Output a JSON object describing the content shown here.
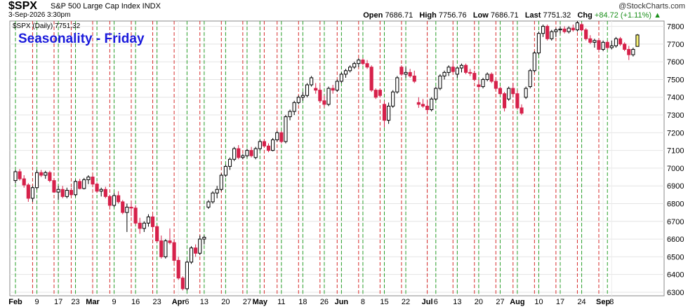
{
  "header": {
    "symbol": "$SPX",
    "name": "S&P 500 Large Cap Index INDX",
    "date": "3-Sep-2026 3:30pm",
    "brand": "@StockCharts.com",
    "ohlc": {
      "open_label": "Open",
      "open": "7686.71",
      "high_label": "High",
      "high": "7756.76",
      "low_label": "Low",
      "low": "7686.71",
      "last_label": "Last",
      "last": "7751.32",
      "chg_label": "Chg",
      "chg": "+84.72 (+1.11%)"
    }
  },
  "colors": {
    "up_border": "#000000",
    "down": "#d6214a",
    "flat": "#000000",
    "friday_line": "#d62b2b",
    "monday_line": "#2aa02a",
    "highlight": "#f5f073",
    "title": "#1a1adb"
  },
  "chart_data": {
    "type": "candlestick",
    "title": "Seasonality - Friday",
    "legend": "$SPX (Daily) 7751.32",
    "legend_placement": "top-left",
    "ylim": [
      6280,
      7830
    ],
    "y_ticks": [
      6300,
      6400,
      6500,
      6600,
      6700,
      6800,
      6900,
      7000,
      7100,
      7200,
      7300,
      7400,
      7500,
      7600,
      7700,
      7800
    ],
    "grid": true,
    "x_ticks": [
      {
        "i": 0,
        "label": "Feb",
        "bold": true
      },
      {
        "i": 5,
        "label": "9"
      },
      {
        "i": 10,
        "label": "17"
      },
      {
        "i": 14,
        "label": "23"
      },
      {
        "i": 18,
        "label": "Mar",
        "bold": true
      },
      {
        "i": 23,
        "label": "9"
      },
      {
        "i": 28,
        "label": "16"
      },
      {
        "i": 33,
        "label": "23"
      },
      {
        "i": 38,
        "label": "Apr",
        "bold": true
      },
      {
        "i": 40,
        "label": "6"
      },
      {
        "i": 44,
        "label": "13"
      },
      {
        "i": 49,
        "label": "20"
      },
      {
        "i": 54,
        "label": "27"
      },
      {
        "i": 57,
        "label": "May",
        "bold": true
      },
      {
        "i": 62,
        "label": "11"
      },
      {
        "i": 67,
        "label": "18"
      },
      {
        "i": 72,
        "label": "26"
      },
      {
        "i": 76,
        "label": "Jun",
        "bold": true
      },
      {
        "i": 81,
        "label": "8"
      },
      {
        "i": 86,
        "label": "15"
      },
      {
        "i": 91,
        "label": "22"
      },
      {
        "i": 96,
        "label": "Jul",
        "bold": true
      },
      {
        "i": 98,
        "label": "6"
      },
      {
        "i": 103,
        "label": "13"
      },
      {
        "i": 108,
        "label": "20"
      },
      {
        "i": 113,
        "label": "27"
      },
      {
        "i": 117,
        "label": "Aug",
        "bold": true
      },
      {
        "i": 122,
        "label": "10"
      },
      {
        "i": 127,
        "label": "17"
      },
      {
        "i": 132,
        "label": "24"
      },
      {
        "i": 137,
        "label": "Sep",
        "bold": true
      },
      {
        "i": 139,
        "label": "8"
      }
    ],
    "mondays": [
      0,
      5,
      10,
      14,
      19,
      23,
      28,
      33,
      40,
      44,
      49,
      54,
      57,
      62,
      67,
      72,
      76,
      81,
      86,
      91,
      98,
      103,
      108,
      113,
      117,
      122,
      127,
      132,
      138
    ],
    "fridays": [
      4,
      9,
      13,
      18,
      22,
      27,
      32,
      37,
      43,
      48,
      53,
      58,
      61,
      66,
      71,
      75,
      80,
      85,
      90,
      96,
      102,
      107,
      112,
      116,
      121,
      126,
      131,
      136
    ],
    "candles": [
      [
        6930,
        6990,
        6915,
        6980
      ],
      [
        6980,
        6995,
        6930,
        6940
      ],
      [
        6940,
        6960,
        6890,
        6905
      ],
      [
        6905,
        6915,
        6810,
        6830
      ],
      [
        6830,
        6900,
        6810,
        6890
      ],
      [
        6890,
        6990,
        6880,
        6975
      ],
      [
        6975,
        6990,
        6950,
        6960
      ],
      [
        6960,
        6985,
        6940,
        6975
      ],
      [
        6975,
        6985,
        6920,
        6930
      ],
      [
        6930,
        6940,
        6860,
        6865
      ],
      [
        6865,
        6900,
        6820,
        6880
      ],
      [
        6880,
        6900,
        6830,
        6840
      ],
      [
        6840,
        6890,
        6830,
        6875
      ],
      [
        6875,
        6890,
        6840,
        6850
      ],
      [
        6850,
        6935,
        6840,
        6925
      ],
      [
        6925,
        6940,
        6880,
        6885
      ],
      [
        6885,
        6945,
        6880,
        6935
      ],
      [
        6935,
        6960,
        6910,
        6950
      ],
      [
        6950,
        6960,
        6900,
        6910
      ],
      [
        6910,
        6920,
        6860,
        6870
      ],
      [
        6870,
        6890,
        6840,
        6880
      ],
      [
        6880,
        6895,
        6830,
        6840
      ],
      [
        6840,
        6850,
        6780,
        6790
      ],
      [
        6790,
        6860,
        6780,
        6845
      ],
      [
        6845,
        6870,
        6800,
        6810
      ],
      [
        6810,
        6820,
        6740,
        6750
      ],
      [
        6750,
        6800,
        6640,
        6780
      ],
      [
        6780,
        6810,
        6730,
        6775
      ],
      [
        6775,
        6790,
        6680,
        6690
      ],
      [
        6690,
        6720,
        6630,
        6660
      ],
      [
        6660,
        6700,
        6640,
        6690
      ],
      [
        6690,
        6740,
        6670,
        6725
      ],
      [
        6725,
        6740,
        6660,
        6670
      ],
      [
        6670,
        6680,
        6580,
        6590
      ],
      [
        6590,
        6620,
        6490,
        6500
      ],
      [
        6500,
        6600,
        6490,
        6590
      ],
      [
        6590,
        6660,
        6570,
        6580
      ],
      [
        6580,
        6600,
        6470,
        6480
      ],
      [
        6480,
        6500,
        6370,
        6380
      ],
      [
        6380,
        6390,
        6310,
        6320
      ],
      [
        6320,
        6480,
        6310,
        6470
      ],
      [
        6470,
        6560,
        6460,
        6550
      ],
      [
        6550,
        6570,
        6500,
        6520
      ],
      [
        6520,
        6620,
        6510,
        6600
      ],
      [
        6600,
        6620,
        6570,
        6610
      ],
      [
        6780,
        6820,
        6770,
        6810
      ],
      [
        6810,
        6870,
        6800,
        6860
      ],
      [
        6860,
        6900,
        6830,
        6880
      ],
      [
        6880,
        6970,
        6870,
        6960
      ],
      [
        6960,
        7020,
        6950,
        7010
      ],
      [
        7010,
        7060,
        6990,
        7050
      ],
      [
        7050,
        7120,
        7040,
        7110
      ],
      [
        7110,
        7130,
        7050,
        7060
      ],
      [
        7060,
        7080,
        7050,
        7070
      ],
      [
        7070,
        7110,
        7060,
        7100
      ],
      [
        7100,
        7120,
        7060,
        7070
      ],
      [
        7060,
        7120,
        7050,
        7110
      ],
      [
        7110,
        7160,
        7100,
        7150
      ],
      [
        7150,
        7160,
        7120,
        7125
      ],
      [
        7125,
        7140,
        7090,
        7100
      ],
      [
        7100,
        7170,
        7095,
        7160
      ],
      [
        7160,
        7210,
        7150,
        7200
      ],
      [
        7200,
        7210,
        7140,
        7150
      ],
      [
        7150,
        7300,
        7140,
        7290
      ],
      [
        7290,
        7330,
        7270,
        7320
      ],
      [
        7320,
        7380,
        7300,
        7370
      ],
      [
        7370,
        7410,
        7360,
        7400
      ],
      [
        7400,
        7430,
        7380,
        7410
      ],
      [
        7410,
        7480,
        7400,
        7470
      ],
      [
        7470,
        7520,
        7460,
        7510
      ],
      [
        7450,
        7480,
        7420,
        7440
      ],
      [
        7440,
        7470,
        7370,
        7380
      ],
      [
        7380,
        7410,
        7340,
        7360
      ],
      [
        7360,
        7460,
        7350,
        7450
      ],
      [
        7450,
        7470,
        7420,
        7440
      ],
      [
        7440,
        7500,
        7430,
        7490
      ],
      [
        7490,
        7540,
        7480,
        7530
      ],
      [
        7530,
        7560,
        7510,
        7550
      ],
      [
        7550,
        7580,
        7540,
        7570
      ],
      [
        7570,
        7600,
        7560,
        7590
      ],
      [
        7590,
        7620,
        7570,
        7610
      ],
      [
        7610,
        7620,
        7580,
        7590
      ],
      [
        7590,
        7610,
        7560,
        7570
      ],
      [
        7570,
        7580,
        7430,
        7440
      ],
      [
        7440,
        7450,
        7390,
        7400
      ],
      [
        7440,
        7450,
        7400,
        7410
      ],
      [
        7360,
        7380,
        7230,
        7270
      ],
      [
        7270,
        7370,
        7250,
        7350
      ],
      [
        7350,
        7440,
        7340,
        7430
      ],
      [
        7430,
        7520,
        7420,
        7510
      ],
      [
        7570,
        7580,
        7520,
        7530
      ],
      [
        7530,
        7570,
        7510,
        7540
      ],
      [
        7540,
        7560,
        7510,
        7520
      ],
      [
        7520,
        7550,
        7480,
        7490
      ],
      [
        7370,
        7400,
        7340,
        7360
      ],
      [
        7360,
        7390,
        7340,
        7350
      ],
      [
        7350,
        7380,
        7310,
        7330
      ],
      [
        7330,
        7400,
        7320,
        7390
      ],
      [
        7390,
        7460,
        7380,
        7450
      ],
      [
        7450,
        7530,
        7440,
        7520
      ],
      [
        7520,
        7550,
        7500,
        7540
      ],
      [
        7540,
        7580,
        7520,
        7570
      ],
      [
        7570,
        7590,
        7540,
        7545
      ],
      [
        7530,
        7570,
        7510,
        7565
      ],
      [
        7565,
        7590,
        7540,
        7580
      ],
      [
        7580,
        7590,
        7530,
        7540
      ],
      [
        7540,
        7560,
        7520,
        7535
      ],
      [
        7535,
        7550,
        7490,
        7500
      ],
      [
        7470,
        7500,
        7440,
        7460
      ],
      [
        7460,
        7510,
        7450,
        7500
      ],
      [
        7500,
        7540,
        7490,
        7530
      ],
      [
        7530,
        7540,
        7480,
        7490
      ],
      [
        7490,
        7500,
        7440,
        7450
      ],
      [
        7450,
        7460,
        7410,
        7420
      ],
      [
        7420,
        7430,
        7320,
        7340
      ],
      [
        7390,
        7460,
        7380,
        7450
      ],
      [
        7450,
        7480,
        7400,
        7420
      ],
      [
        7420,
        7440,
        7330,
        7340
      ],
      [
        7340,
        7360,
        7300,
        7310
      ],
      [
        7400,
        7460,
        7390,
        7450
      ],
      [
        7460,
        7560,
        7450,
        7550
      ],
      [
        7550,
        7660,
        7540,
        7650
      ],
      [
        7650,
        7770,
        7640,
        7760
      ],
      [
        7760,
        7810,
        7740,
        7800
      ],
      [
        7800,
        7810,
        7720,
        7730
      ],
      [
        7730,
        7780,
        7720,
        7770
      ],
      [
        7770,
        7790,
        7740,
        7780
      ],
      [
        7780,
        7800,
        7760,
        7785
      ],
      [
        7785,
        7800,
        7760,
        7770
      ],
      [
        7770,
        7800,
        7760,
        7790
      ],
      [
        7790,
        7810,
        7770,
        7780
      ],
      [
        7780,
        7830,
        7770,
        7820
      ],
      [
        7810,
        7820,
        7770,
        7780
      ],
      [
        7780,
        7790,
        7720,
        7730
      ],
      [
        7730,
        7750,
        7700,
        7710
      ],
      [
        7710,
        7730,
        7680,
        7720
      ],
      [
        7720,
        7730,
        7660,
        7670
      ],
      [
        7670,
        7720,
        7660,
        7710
      ],
      [
        7710,
        7720,
        7670,
        7680
      ],
      [
        7680,
        7720,
        7670,
        7690
      ],
      [
        7690,
        7740,
        7680,
        7730
      ],
      [
        7730,
        7740,
        7690,
        7700
      ],
      [
        7700,
        7710,
        7660,
        7670
      ],
      [
        7670,
        7690,
        7610,
        7640
      ],
      [
        7640,
        7680,
        7630,
        7670
      ],
      [
        7686.71,
        7756.76,
        7686.71,
        7751.32
      ]
    ]
  }
}
